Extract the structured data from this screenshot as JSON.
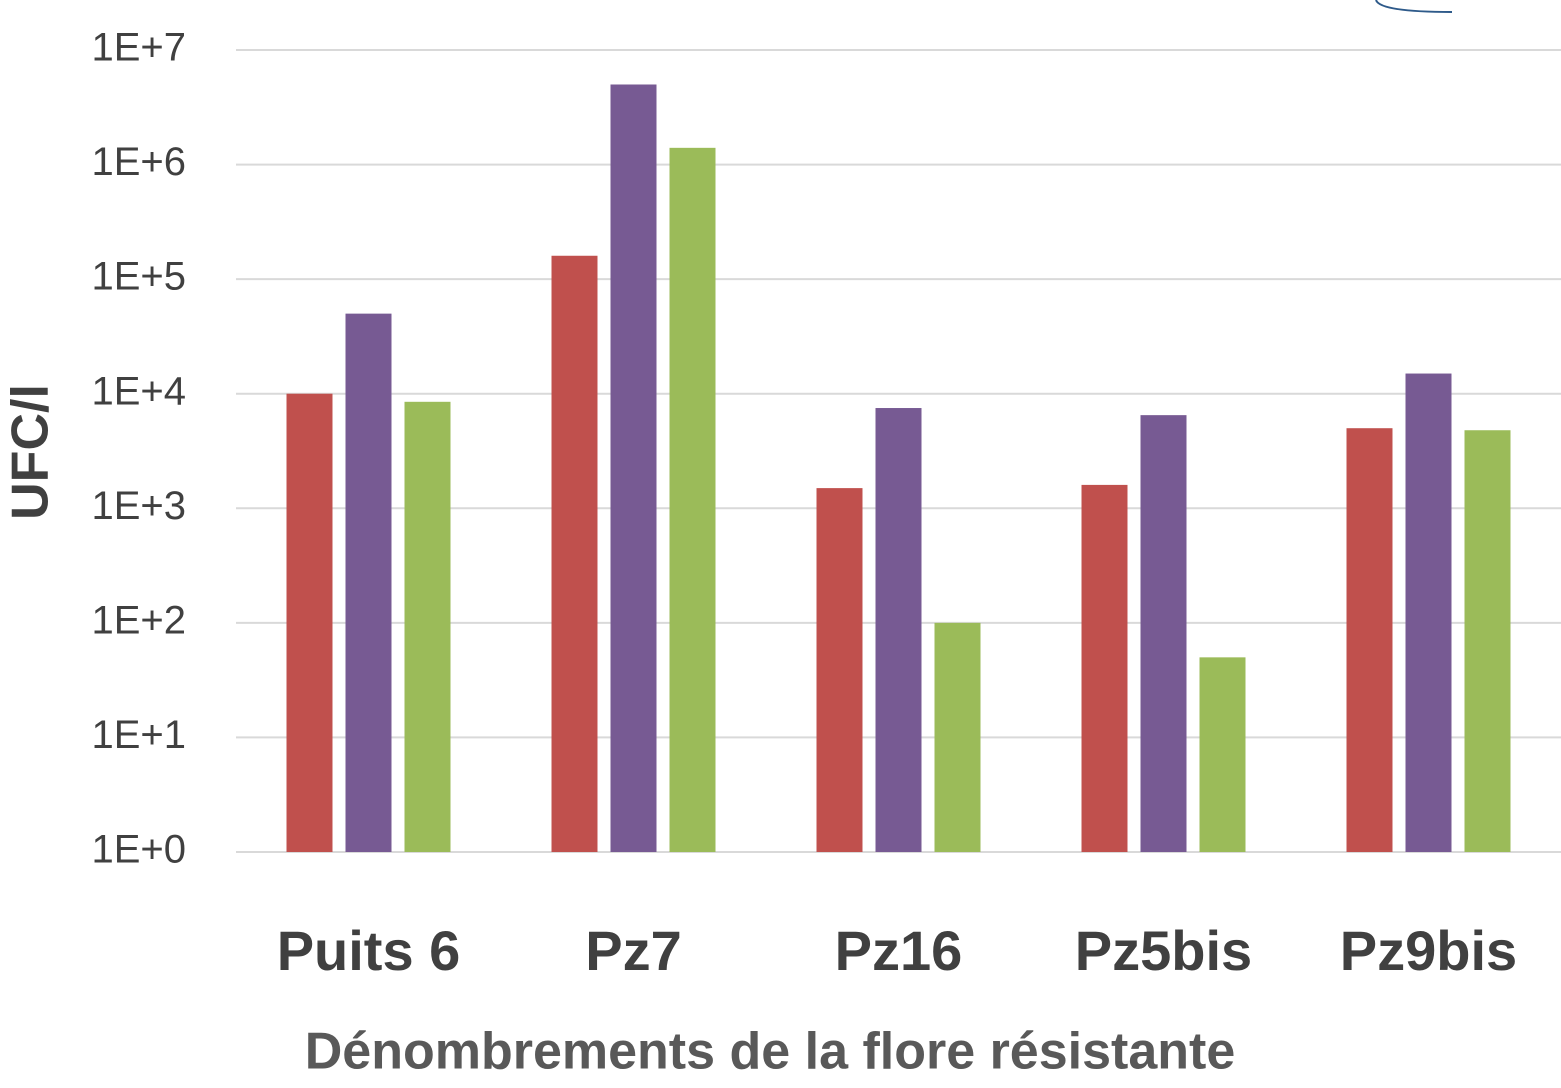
{
  "chart_data": {
    "type": "bar",
    "y_label": "UFC/l",
    "x_label": "Dénombrements de la flore résistante",
    "categories": [
      "Puits 6",
      "Pz7",
      "Pz16",
      "Pz5bis",
      "Pz9bis"
    ],
    "series": [
      {
        "color": "#c0504d",
        "values": [
          10000,
          160000,
          1500,
          1600,
          5000
        ]
      },
      {
        "color": "#775a93",
        "values": [
          50000,
          5000000,
          7500,
          6500,
          15000
        ]
      },
      {
        "color": "#9bbb59",
        "values": [
          8500,
          1400000,
          100,
          50,
          4800
        ]
      }
    ],
    "log_scale": true,
    "ylim": [
      1,
      10000000
    ],
    "yticks": [
      {
        "value": 1,
        "label": "1E+0"
      },
      {
        "value": 10,
        "label": "1E+1"
      },
      {
        "value": 100,
        "label": "1E+2"
      },
      {
        "value": 1000,
        "label": "1E+3"
      },
      {
        "value": 10000,
        "label": "1E+4"
      },
      {
        "value": 100000,
        "label": "1E+5"
      },
      {
        "value": 1000000,
        "label": "1E+6"
      },
      {
        "value": 10000000,
        "label": "1E+7"
      }
    ],
    "grid": true
  }
}
